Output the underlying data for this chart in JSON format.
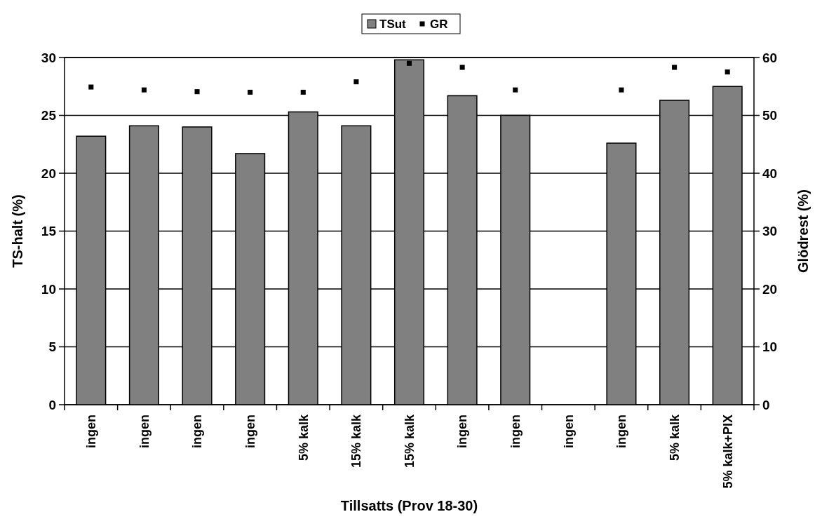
{
  "chart_data": {
    "type": "bar",
    "xlabel": "Tillsatts (Prov 18-30)",
    "ylabel": "TS-halt (%)",
    "y2label": "Glödrest (%)",
    "categories": [
      "ingen",
      "ingen",
      "ingen",
      "ingen",
      "5% kalk",
      "15% kalk",
      "15% kalk",
      "ingen",
      "ingen",
      "ingen",
      "ingen",
      "5% kalk",
      "5% kalk+PIX"
    ],
    "series": [
      {
        "name": "TSut",
        "color": "#808080",
        "values": [
          23.2,
          24.1,
          24.0,
          21.7,
          25.3,
          24.1,
          29.8,
          26.7,
          25.0,
          null,
          22.6,
          26.3,
          27.5
        ]
      },
      {
        "name": "GR",
        "type": "scatter",
        "axis": "y2",
        "color": "#000000",
        "marker": "square",
        "values": [
          54.9,
          54.4,
          54.1,
          54.0,
          54.0,
          55.8,
          59.0,
          58.3,
          54.4,
          null,
          54.4,
          58.3,
          57.5
        ]
      }
    ],
    "ylim": [
      0,
      30
    ],
    "yticks": [
      0,
      5,
      10,
      15,
      20,
      25,
      30
    ],
    "y2lim": [
      0,
      60
    ],
    "y2ticks": [
      0,
      10,
      20,
      30,
      40,
      50,
      60
    ],
    "grid": "y",
    "legend": "top"
  }
}
